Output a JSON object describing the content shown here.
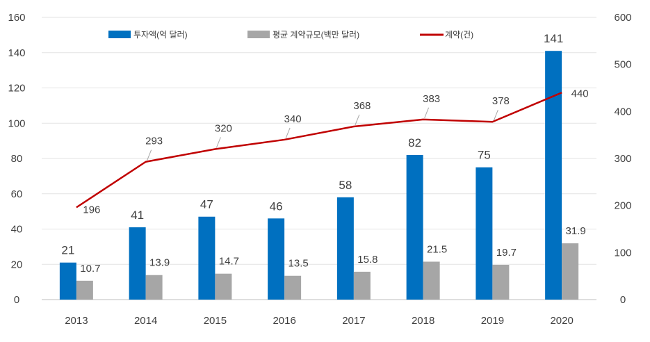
{
  "chart_data": {
    "type": "bar",
    "categories": [
      "2013",
      "2014",
      "2015",
      "2016",
      "2017",
      "2018",
      "2019",
      "2020"
    ],
    "series": [
      {
        "name": "투자액(억 달러)",
        "type": "bar",
        "axis": "left",
        "color": "#0070C0",
        "values": [
          21,
          41,
          47,
          46,
          58,
          82,
          75,
          141
        ],
        "labels": [
          "21",
          "41",
          "47",
          "46",
          "58",
          "82",
          "75",
          "141"
        ]
      },
      {
        "name": "평균 계약규모(백만 달러)",
        "type": "bar",
        "axis": "left",
        "color": "#A6A6A6",
        "values": [
          10.7,
          13.9,
          14.7,
          13.5,
          15.8,
          21.5,
          19.7,
          31.9
        ],
        "labels": [
          "10.7",
          "13.9",
          "14.7",
          "13.5",
          "15.8",
          "21.5",
          "19.7",
          "31.9"
        ]
      },
      {
        "name": "계약(건)",
        "type": "line",
        "axis": "right",
        "color": "#C00000",
        "values": [
          196,
          293,
          320,
          340,
          368,
          383,
          378,
          440
        ],
        "labels": [
          "196",
          "293",
          "320",
          "340",
          "368",
          "383",
          "378",
          "440"
        ]
      }
    ],
    "y_left": {
      "ylim": [
        0,
        160
      ],
      "ticks": [
        "0",
        "20",
        "40",
        "60",
        "80",
        "100",
        "120",
        "140",
        "160"
      ]
    },
    "y_right": {
      "ylim": [
        0,
        600
      ],
      "ticks": [
        "0",
        "100",
        "200",
        "300",
        "400",
        "500",
        "600"
      ]
    },
    "grid": true,
    "legend_position": "top"
  }
}
